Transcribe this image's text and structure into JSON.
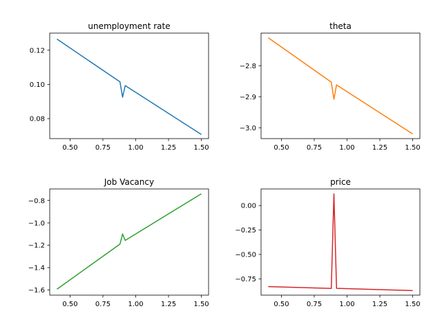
{
  "chart_data": [
    {
      "type": "line",
      "title": "unemployment rate",
      "xlabel": "",
      "ylabel": "",
      "xlim": [
        0.345,
        1.555
      ],
      "ylim": [
        0.0683,
        0.13
      ],
      "xticks": [
        0.5,
        0.75,
        1.0,
        1.25,
        1.5
      ],
      "xtick_labels": [
        "0.50",
        "0.75",
        "1.00",
        "1.25",
        "1.50"
      ],
      "yticks": [
        0.08,
        0.1,
        0.12
      ],
      "ytick_labels": [
        "0.08",
        "0.10",
        "0.12"
      ],
      "color": "#1f77b4",
      "grid": false,
      "series": [
        {
          "x": [
            0.4,
            0.88,
            0.9,
            0.92,
            1.5
          ],
          "y": [
            0.1265,
            0.1015,
            0.0925,
            0.0993,
            0.0707
          ]
        }
      ]
    },
    {
      "type": "line",
      "title": "theta",
      "xlabel": "",
      "ylabel": "",
      "xlim": [
        0.345,
        1.555
      ],
      "ylim": [
        -3.035,
        -2.695
      ],
      "xticks": [
        0.5,
        0.75,
        1.0,
        1.25,
        1.5
      ],
      "xtick_labels": [
        "0.50",
        "0.75",
        "1.00",
        "1.25",
        "1.50"
      ],
      "yticks": [
        -2.8,
        -2.9,
        -3.0
      ],
      "ytick_labels": [
        "−2.8",
        "−2.9",
        "−3.0"
      ],
      "color": "#ff7f0e",
      "grid": false,
      "series": [
        {
          "x": [
            0.4,
            0.88,
            0.9,
            0.92,
            1.5
          ],
          "y": [
            -2.71,
            -2.853,
            -2.908,
            -2.862,
            -3.02
          ]
        }
      ]
    },
    {
      "type": "line",
      "title": "Job Vacancy",
      "xlabel": "",
      "ylabel": "",
      "xlim": [
        0.345,
        1.555
      ],
      "ylim": [
        -1.646,
        -0.697
      ],
      "xticks": [
        0.5,
        0.75,
        1.0,
        1.25,
        1.5
      ],
      "xtick_labels": [
        "0.50",
        "0.75",
        "1.00",
        "1.25",
        "1.50"
      ],
      "yticks": [
        -0.8,
        -1.0,
        -1.2,
        -1.4,
        -1.6
      ],
      "ytick_labels": [
        "−0.8",
        "−1.0",
        "−1.2",
        "−1.4",
        "−1.6"
      ],
      "color": "#2ca02c",
      "grid": false,
      "series": [
        {
          "x": [
            0.4,
            0.88,
            0.9,
            0.92,
            1.5
          ],
          "y": [
            -1.593,
            -1.19,
            -1.1,
            -1.157,
            -0.74
          ]
        }
      ]
    },
    {
      "type": "line",
      "title": "price",
      "xlabel": "",
      "ylabel": "",
      "xlim": [
        0.345,
        1.555
      ],
      "ylim": [
        -0.917,
        0.17
      ],
      "xticks": [
        0.5,
        0.75,
        1.0,
        1.25,
        1.5
      ],
      "xtick_labels": [
        "0.50",
        "0.75",
        "1.00",
        "1.25",
        "1.50"
      ],
      "yticks": [
        0.0,
        -0.25,
        -0.5,
        -0.75
      ],
      "ytick_labels": [
        "0.00",
        "−0.25",
        "−0.50",
        "−0.75"
      ],
      "color": "#d62728",
      "grid": false,
      "series": [
        {
          "x": [
            0.4,
            0.88,
            0.9,
            0.92,
            1.5
          ],
          "y": [
            -0.83,
            -0.848,
            0.12,
            -0.847,
            -0.87
          ]
        }
      ]
    }
  ]
}
